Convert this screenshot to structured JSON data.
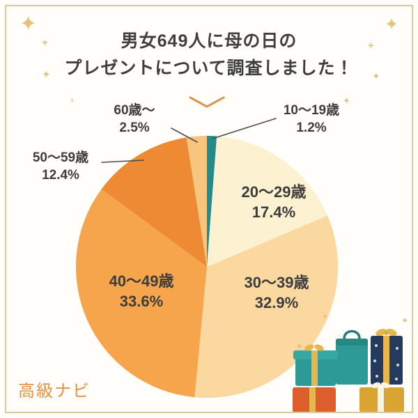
{
  "title": {
    "line1": "男女649人に母の日の",
    "line2": "プレゼントについて調査しました！"
  },
  "brand": {
    "text": "高級ナビ",
    "color": "#e8913d"
  },
  "icons": {
    "sparkle": "✦",
    "plus": "+"
  },
  "colors": {
    "frame_border": "#dcc99b",
    "title_text": "#3e3e3e",
    "leader_line": "#4a4a4a",
    "sparkle_gold": "#e5c37f"
  },
  "chart_data": {
    "type": "pie",
    "title": "男女649人に母の日のプレゼントについて調査しました！",
    "unit": "%",
    "direction": "clockwise",
    "start_angle_deg": 0,
    "legend_position": "none",
    "slices": [
      {
        "label": "10〜19歳",
        "value": 1.2,
        "pct_text": "1.2%",
        "color": "#238b8b",
        "label_placement": "outside"
      },
      {
        "label": "20〜29歳",
        "value": 17.4,
        "pct_text": "17.4%",
        "color": "#fcf1d0",
        "label_placement": "inside"
      },
      {
        "label": "30〜39歳",
        "value": 32.9,
        "pct_text": "32.9%",
        "color": "#fbd8a0",
        "label_placement": "inside"
      },
      {
        "label": "40〜49歳",
        "value": 33.6,
        "pct_text": "33.6%",
        "color": "#f6a54d",
        "label_placement": "inside"
      },
      {
        "label": "50〜59歳",
        "value": 12.4,
        "pct_text": "12.4%",
        "color": "#ed8a33",
        "label_placement": "outside"
      },
      {
        "label": "60歳〜",
        "value": 2.5,
        "pct_text": "2.5%",
        "color": "#f8c57e",
        "label_placement": "outside"
      }
    ]
  }
}
